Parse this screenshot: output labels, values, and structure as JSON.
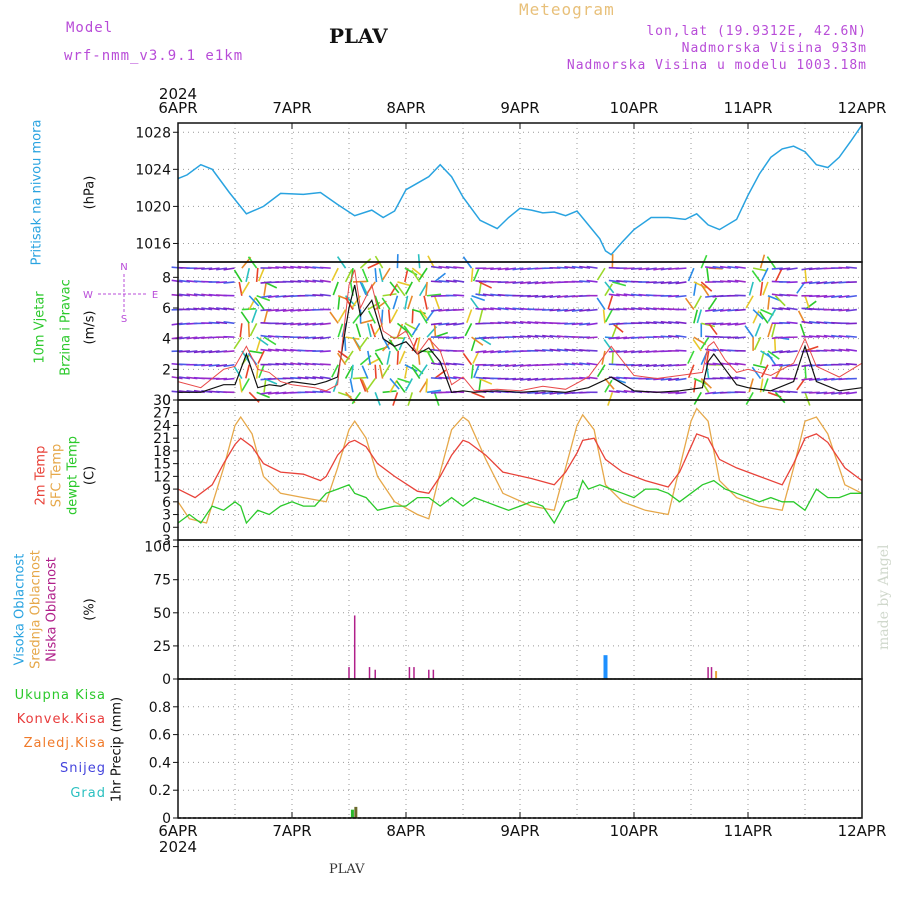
{
  "header": {
    "model_label": "Model",
    "model_name": "wrf-nmm_v3.9.1 e1km",
    "station": "PLAV",
    "meteogram_label": "Meteogram",
    "lonlat": "lon,lat (19.9312E, 42.6N)",
    "elevation": "Nadmorska Visina 933m",
    "model_elevation": "Nadmorska Visina u modelu 1003.18m"
  },
  "time_axis": {
    "year": "2024",
    "ticks": [
      "6APR",
      "7APR",
      "8APR",
      "9APR",
      "10APR",
      "11APR",
      "12APR"
    ]
  },
  "colors": {
    "pressure": "#29a3e0",
    "t2m": "#e8433a",
    "sfc": "#e6a84a",
    "dewpt": "#2bc92b",
    "high_cloud": "#1e90ff",
    "mid_cloud": "#e8a33a",
    "low_cloud": "#b0208a",
    "total_precip": "#2bb82b",
    "conv_precip": "#e83a3a",
    "frz_precip": "#f07a2a",
    "snow": "#4444dd",
    "hail": "#2ac0c0",
    "wind_speed": "#111111",
    "gust": "#e84a4a"
  },
  "panel_labels": {
    "pressure": "Pritisak na nivou mora",
    "pressure_unit": "(hPa)",
    "wind_a": "10m Vjetar",
    "wind_b": "Brzina i Pravac",
    "wind_unit": "(m/s)",
    "compass_n": "N",
    "compass_s": "S",
    "compass_w": "W",
    "compass_e": "E",
    "temp_a": "2m Temp",
    "temp_b": "SFC Temp",
    "temp_c": "dewpt Temp",
    "temp_unit": "(C)",
    "cloud_a": "Visoka Oblacnost",
    "cloud_b": "Srednja Oblacnost",
    "cloud_c": "Niska Oblacnost",
    "cloud_unit": "(%)",
    "precip_unit": "1hr Precip (mm)",
    "precip_total": "Ukupna Kisa",
    "precip_conv": "Konvek.Kisa",
    "precip_frz": "Zaledj.Kisa",
    "precip_snow": "Snijeg",
    "precip_hail": "Grad"
  },
  "footer": {
    "station": "PLAV",
    "credit": "made by Angel"
  },
  "chart_data": [
    {
      "type": "line",
      "panel": "pressure",
      "ylim": [
        1014,
        1029
      ],
      "yticks": [
        1016,
        1020,
        1024,
        1028
      ],
      "x_days": [
        0,
        0.08,
        0.2,
        0.3,
        0.45,
        0.6,
        0.75,
        0.9,
        1.1,
        1.25,
        1.4,
        1.55,
        1.7,
        1.8,
        1.9,
        2.0,
        2.1,
        2.2,
        2.3,
        2.4,
        2.5,
        2.65,
        2.8,
        2.9,
        3.0,
        3.1,
        3.2,
        3.3,
        3.4,
        3.5,
        3.6,
        3.7,
        3.75,
        3.8,
        3.9,
        4.0,
        4.15,
        4.3,
        4.45,
        4.55,
        4.65,
        4.75,
        4.9,
        5.0,
        5.1,
        5.2,
        5.3,
        5.4,
        5.5,
        5.6,
        5.7,
        5.8,
        5.9,
        6.0
      ],
      "values": [
        1023,
        1023.4,
        1024.5,
        1024.0,
        1021.5,
        1019.2,
        1020.0,
        1021.4,
        1021.3,
        1021.5,
        1020.2,
        1019.0,
        1019.6,
        1018.8,
        1019.5,
        1021.8,
        1022.5,
        1023.2,
        1024.5,
        1023.2,
        1021.0,
        1018.5,
        1017.6,
        1018.8,
        1019.8,
        1019.6,
        1019.3,
        1019.4,
        1019.0,
        1019.5,
        1018.0,
        1016.5,
        1015.2,
        1014.8,
        1016.2,
        1017.5,
        1018.8,
        1018.8,
        1018.6,
        1019.2,
        1018.0,
        1017.5,
        1018.6,
        1021.2,
        1023.5,
        1025.3,
        1026.2,
        1026.5,
        1025.9,
        1024.5,
        1024.2,
        1025.3,
        1027.0,
        1028.8
      ]
    },
    {
      "type": "line",
      "panel": "wind",
      "ylim": [
        0,
        9
      ],
      "yticks": [
        0,
        2,
        4,
        6,
        8
      ],
      "series": [
        {
          "x_days": [
            0,
            0.2,
            0.4,
            0.5,
            0.6,
            0.7,
            0.8,
            0.9,
            1.0,
            1.2,
            1.3,
            1.4,
            1.5,
            1.55,
            1.6,
            1.7,
            1.8,
            1.9,
            2.0,
            2.1,
            2.2,
            2.3,
            2.4,
            2.5,
            2.6,
            2.8,
            3.0,
            3.2,
            3.4,
            3.6,
            3.8,
            4.0,
            4.2,
            4.4,
            4.6,
            4.65,
            4.7,
            4.8,
            4.9,
            5.0,
            5.2,
            5.4,
            5.5,
            5.6,
            5.8,
            6.0
          ],
          "values": [
            0.5,
            0.5,
            1.0,
            1.0,
            3.0,
            0.8,
            1.0,
            0.9,
            1.2,
            1.0,
            1.2,
            1.5,
            6.0,
            7.5,
            5.5,
            6.5,
            4.0,
            3.5,
            3.8,
            3.0,
            3.4,
            2.5,
            0.5,
            0.6,
            0.5,
            0.6,
            0.5,
            0.6,
            0.5,
            0.8,
            1.5,
            0.6,
            0.5,
            0.6,
            0.8,
            2.5,
            3.0,
            2.0,
            1.0,
            0.8,
            0.6,
            1.2,
            3.5,
            1.2,
            0.6,
            0.8
          ]
        },
        {
          "x_days": [
            0,
            0.2,
            0.4,
            0.5,
            0.6,
            0.7,
            0.8,
            0.9,
            1.0,
            1.2,
            1.3,
            1.4,
            1.5,
            1.55,
            1.6,
            1.7,
            1.8,
            1.9,
            2.0,
            2.1,
            2.2,
            2.3,
            2.4,
            2.5,
            2.6,
            2.8,
            3.0,
            3.2,
            3.4,
            3.6,
            3.8,
            4.0,
            4.2,
            4.4,
            4.6,
            4.65,
            4.7,
            4.8,
            4.9,
            5.0,
            5.2,
            5.4,
            5.5,
            5.6,
            5.8,
            6.0
          ],
          "values": [
            1.2,
            0.8,
            2.0,
            2.2,
            3.5,
            2.0,
            1.8,
            1.2,
            1.0,
            0.8,
            0.6,
            1.0,
            7.5,
            8.5,
            6.0,
            7.5,
            4.5,
            4.0,
            4.5,
            3.0,
            4.0,
            3.2,
            1.0,
            1.5,
            0.6,
            0.7,
            0.6,
            0.9,
            0.7,
            1.5,
            3.5,
            1.6,
            1.4,
            1.6,
            1.8,
            3.5,
            3.8,
            2.6,
            1.8,
            2.0,
            1.6,
            2.4,
            4.0,
            2.2,
            1.5,
            2.4
          ]
        }
      ]
    },
    {
      "type": "line",
      "panel": "temperature",
      "ylim": [
        -3,
        30
      ],
      "yticks": [
        -3,
        0,
        3,
        6,
        9,
        12,
        15,
        18,
        21,
        24,
        27,
        30
      ],
      "series": [
        {
          "x_days": [
            0,
            0.15,
            0.3,
            0.4,
            0.5,
            0.55,
            0.65,
            0.75,
            0.9,
            1.1,
            1.25,
            1.3,
            1.4,
            1.5,
            1.55,
            1.65,
            1.75,
            1.9,
            2.1,
            2.2,
            2.3,
            2.4,
            2.5,
            2.55,
            2.7,
            2.85,
            3.1,
            3.3,
            3.4,
            3.5,
            3.55,
            3.65,
            3.75,
            3.9,
            4.1,
            4.3,
            4.4,
            4.5,
            4.55,
            4.65,
            4.75,
            4.9,
            5.1,
            5.3,
            5.4,
            5.5,
            5.6,
            5.7,
            5.85,
            6.0
          ],
          "values": [
            9,
            7,
            10,
            15,
            19.5,
            21,
            19,
            15,
            13,
            12.5,
            11,
            12,
            17,
            20,
            20.5,
            19,
            15,
            12,
            8.5,
            8,
            12,
            17,
            20.5,
            20,
            17,
            13,
            11.5,
            10,
            13,
            17.5,
            20.5,
            21,
            16,
            13,
            11,
            9.5,
            13,
            19,
            22,
            21,
            16,
            14,
            12,
            10,
            15,
            21,
            22,
            20,
            14,
            11
          ]
        },
        {
          "x_days": [
            0,
            0.1,
            0.25,
            0.4,
            0.5,
            0.55,
            0.65,
            0.75,
            0.9,
            1.1,
            1.3,
            1.4,
            1.5,
            1.55,
            1.65,
            1.75,
            1.9,
            2.1,
            2.2,
            2.3,
            2.4,
            2.5,
            2.55,
            2.7,
            2.85,
            3.1,
            3.3,
            3.4,
            3.5,
            3.55,
            3.65,
            3.75,
            3.9,
            4.1,
            4.3,
            4.4,
            4.5,
            4.55,
            4.65,
            4.75,
            4.9,
            5.1,
            5.3,
            5.4,
            5.5,
            5.6,
            5.7,
            5.85,
            6.0
          ],
          "values": [
            6,
            2,
            1,
            14,
            24,
            26,
            22,
            12,
            8,
            7,
            6,
            14,
            23,
            25,
            21,
            12,
            6,
            3,
            2,
            13,
            23,
            26,
            25,
            16,
            8,
            5,
            4,
            14,
            24,
            26.5,
            23,
            10,
            6,
            4,
            3,
            14,
            25,
            28,
            25,
            11,
            7,
            5,
            4,
            14,
            25,
            26,
            22,
            10,
            8
          ]
        },
        {
          "x_days": [
            0,
            0.1,
            0.2,
            0.3,
            0.4,
            0.5,
            0.55,
            0.6,
            0.7,
            0.8,
            0.9,
            1.0,
            1.1,
            1.2,
            1.3,
            1.4,
            1.5,
            1.55,
            1.65,
            1.75,
            1.9,
            2.0,
            2.1,
            2.2,
            2.3,
            2.4,
            2.5,
            2.6,
            2.7,
            2.8,
            2.9,
            3.0,
            3.1,
            3.2,
            3.3,
            3.4,
            3.5,
            3.55,
            3.6,
            3.7,
            3.8,
            3.9,
            4.0,
            4.1,
            4.2,
            4.3,
            4.4,
            4.5,
            4.6,
            4.7,
            4.8,
            4.9,
            5.0,
            5.1,
            5.2,
            5.3,
            5.4,
            5.5,
            5.6,
            5.7,
            5.8,
            5.9,
            6.0
          ],
          "values": [
            1,
            3,
            1,
            5,
            4,
            6,
            5,
            1,
            4,
            3,
            5,
            6,
            5,
            5,
            8,
            9,
            10,
            8,
            7,
            4,
            5,
            5,
            7,
            7,
            5,
            7,
            5,
            7,
            6,
            5,
            4,
            5,
            6,
            5,
            1,
            6,
            7,
            11,
            9,
            10,
            9,
            8,
            7,
            9,
            9,
            8,
            6,
            8,
            10,
            11,
            9,
            8,
            7,
            6,
            7,
            6,
            6,
            4,
            9,
            7,
            7,
            8,
            8
          ]
        }
      ]
    },
    {
      "type": "bar",
      "panel": "cloud",
      "ylim": [
        0,
        105
      ],
      "yticks": [
        0,
        25,
        50,
        75,
        100
      ],
      "series": [
        {
          "x_days": [
            3.75
          ],
          "values": [
            18
          ]
        },
        {
          "x_days": [
            4.72
          ],
          "values": [
            6
          ]
        },
        {
          "x_days": [
            1.5,
            1.55,
            1.68,
            1.73,
            2.03,
            2.07,
            2.2,
            2.24,
            4.65,
            4.68
          ],
          "values": [
            9,
            48,
            9,
            7,
            9,
            9,
            7,
            7,
            9,
            9
          ]
        }
      ]
    },
    {
      "type": "bar",
      "panel": "precipitation",
      "ylim": [
        0,
        1.0
      ],
      "yticks": [
        0,
        0.2,
        0.4,
        0.6,
        0.8
      ],
      "x_days": [
        1.53,
        1.56
      ],
      "values": [
        0.06,
        0.08
      ]
    }
  ]
}
